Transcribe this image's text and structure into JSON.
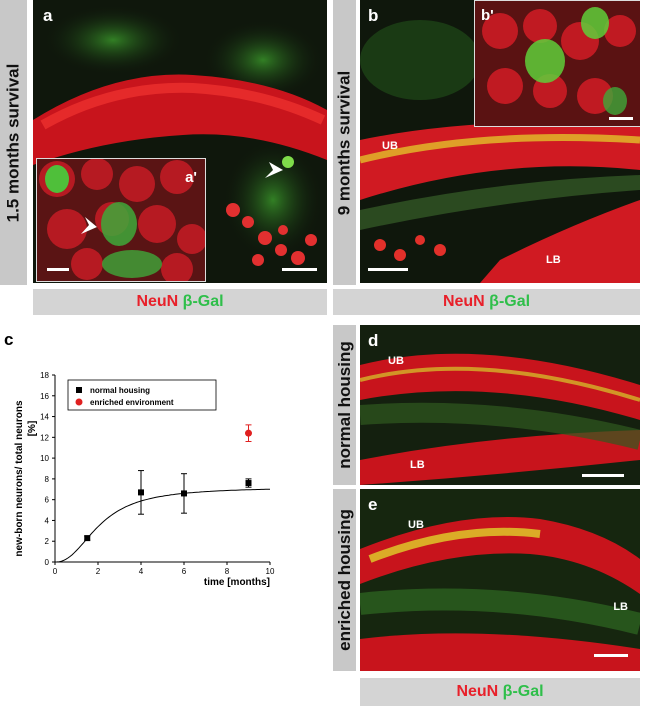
{
  "panels": {
    "a": {
      "label": "a",
      "inset_label": "a'",
      "side_label": "1.5 months survival"
    },
    "b": {
      "label": "b",
      "inset_label": "b'",
      "side_label": "9 months survival",
      "ub": "UB",
      "lb": "LB"
    },
    "c": {
      "label": "c"
    },
    "d": {
      "label": "d",
      "side_label": "normal housing",
      "ub": "UB",
      "lb": "LB"
    },
    "e": {
      "label": "e",
      "side_label": "enriched housing",
      "ub": "UB",
      "lb": "LB"
    }
  },
  "stain": {
    "neun": "NeuN",
    "bgal": "β-Gal"
  },
  "colors": {
    "neun": "#e8202a",
    "bgal": "#2fbf4a",
    "tissue_bg": "#0f170c"
  },
  "chart_data": {
    "type": "scatter",
    "xlabel": "time [months]",
    "ylabel": "new-born neurons/ total neurons",
    "yunit": "[%]",
    "xlim": [
      0,
      10
    ],
    "ylim": [
      0,
      18
    ],
    "xticks": [
      0,
      2,
      4,
      6,
      8,
      10
    ],
    "yticks": [
      0,
      2,
      4,
      6,
      8,
      10,
      12,
      14,
      16,
      18
    ],
    "legend_position": "top-left",
    "series": [
      {
        "name": "normal housing",
        "marker": "square",
        "color": "#000000",
        "points": [
          {
            "x": 1.5,
            "y": 2.3,
            "err": 0.2
          },
          {
            "x": 4,
            "y": 6.7,
            "err": 2.1
          },
          {
            "x": 6,
            "y": 6.6,
            "err": 1.9
          },
          {
            "x": 9,
            "y": 7.6,
            "err": 0.4
          }
        ]
      },
      {
        "name": "enriched environment",
        "marker": "circle",
        "color": "#e02020",
        "points": [
          {
            "x": 9,
            "y": 12.4,
            "err": 0.8
          }
        ]
      }
    ],
    "fit_curve": {
      "color": "#000000",
      "plateau": 7.2
    }
  }
}
